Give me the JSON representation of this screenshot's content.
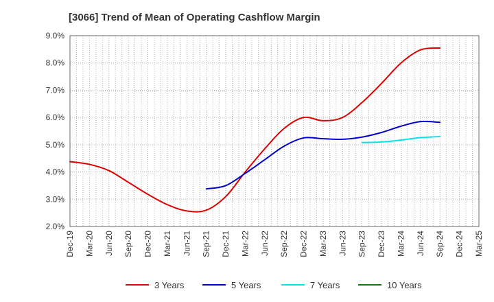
{
  "chart_data": {
    "type": "line",
    "title": "[3066]  Trend of Mean of Operating Cashflow Margin",
    "xlabel": "",
    "ylabel": "",
    "ylim": [
      2.0,
      9.0
    ],
    "y_ticks": [
      2.0,
      3.0,
      4.0,
      5.0,
      6.0,
      7.0,
      8.0,
      9.0
    ],
    "y_tick_labels": [
      "2.0%",
      "3.0%",
      "4.0%",
      "5.0%",
      "6.0%",
      "7.0%",
      "8.0%",
      "9.0%"
    ],
    "x_tick_labels": [
      "Dec-19",
      "Mar-20",
      "Jun-20",
      "Sep-20",
      "Dec-20",
      "Mar-21",
      "Jun-21",
      "Sep-21",
      "Dec-21",
      "Mar-22",
      "Jun-22",
      "Sep-22",
      "Dec-22",
      "Mar-23",
      "Jun-23",
      "Sep-23",
      "Dec-23",
      "Mar-24",
      "Jun-24",
      "Sep-24",
      "Dec-24",
      "Mar-25"
    ],
    "grid": true,
    "legend_position": "bottom",
    "series": [
      {
        "name": "3 Years",
        "color": "#dd0000",
        "x_index": [
          0,
          1,
          2,
          3,
          4,
          5,
          6,
          7,
          8,
          9,
          10,
          11,
          12,
          13,
          14,
          15,
          16,
          17,
          18,
          19
        ],
        "values": [
          4.38,
          4.28,
          4.05,
          3.62,
          3.18,
          2.8,
          2.57,
          2.6,
          3.1,
          4.0,
          4.85,
          5.6,
          6.0,
          5.88,
          6.0,
          6.55,
          7.25,
          8.0,
          8.48,
          8.55
        ]
      },
      {
        "name": "5 Years",
        "color": "#0000cc",
        "x_index": [
          7,
          8,
          9,
          10,
          11,
          12,
          13,
          14,
          15,
          16,
          17,
          18,
          19
        ],
        "values": [
          3.38,
          3.5,
          3.95,
          4.45,
          4.95,
          5.25,
          5.22,
          5.2,
          5.28,
          5.45,
          5.68,
          5.85,
          5.82
        ]
      },
      {
        "name": "7 Years",
        "color": "#00e5ee",
        "x_index": [
          15,
          16,
          17,
          18,
          19
        ],
        "values": [
          5.08,
          5.1,
          5.17,
          5.26,
          5.3
        ]
      },
      {
        "name": "10 Years",
        "color": "#008000",
        "x_index": [],
        "values": []
      }
    ]
  }
}
